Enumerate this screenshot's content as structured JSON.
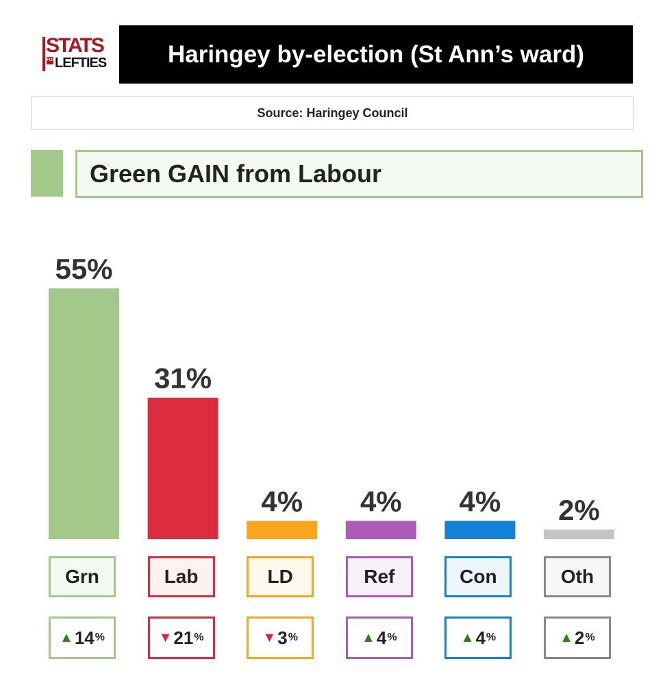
{
  "logo": {
    "line1": "STATS",
    "line2": "FOR",
    "line3": "LEFTIES"
  },
  "title": "Haringey by-election (St Ann’s ward)",
  "source": "Source: Haringey Council",
  "result": {
    "text": "Green GAIN from Labour",
    "color": "#a3c98a"
  },
  "chart_data": {
    "type": "bar",
    "title": "Haringey by-election (St Ann’s ward)",
    "categories": [
      "Grn",
      "Lab",
      "LD",
      "Ref",
      "Con",
      "Oth"
    ],
    "values": [
      55,
      31,
      4,
      4,
      4,
      2
    ],
    "value_labels": [
      "55%",
      "31%",
      "4%",
      "4%",
      "4%",
      "2%"
    ],
    "colors": [
      "#a3c98a",
      "#dc2d40",
      "#f8a71d",
      "#ae5ab8",
      "#1480d6",
      "#c4c4c4"
    ],
    "box_fills": [
      "#f4f9f1",
      "#fdf1f2",
      "#fff8ec",
      "#f8f1f9",
      "#eef6fd",
      "#f7f7f7"
    ],
    "box_borders": [
      "#a3c98a",
      "#dc2d40",
      "#f8a71d",
      "#ae5ab8",
      "#1480d6",
      "#888888"
    ],
    "changes": [
      {
        "direction": "up",
        "value": "14",
        "unit": "%"
      },
      {
        "direction": "down",
        "value": "21",
        "unit": "%"
      },
      {
        "direction": "down",
        "value": "3",
        "unit": "%"
      },
      {
        "direction": "up",
        "value": "4",
        "unit": "%"
      },
      {
        "direction": "up",
        "value": "4",
        "unit": "%"
      },
      {
        "direction": "up",
        "value": "2",
        "unit": "%"
      }
    ],
    "arrow_colors": {
      "up": "#2e7d1e",
      "down": "#d8283d"
    },
    "ylim": [
      0,
      55
    ],
    "xlabel": "",
    "ylabel": "",
    "grid": false
  }
}
